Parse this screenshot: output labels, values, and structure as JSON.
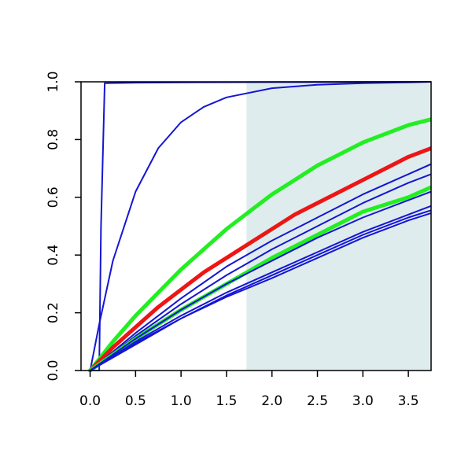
{
  "chart_data": {
    "type": "line",
    "title": "",
    "xlabel": "",
    "ylabel": "",
    "xlim": [
      -0.1,
      3.75
    ],
    "ylim": [
      0.0,
      1.0
    ],
    "x_ticks": [
      0.0,
      0.5,
      1.0,
      1.5,
      2.0,
      2.5,
      3.0,
      3.5
    ],
    "x_tick_labels": [
      "0.0",
      "0.5",
      "1.0",
      "1.5",
      "2.0",
      "2.5",
      "3.0",
      "3.5"
    ],
    "y_ticks": [
      0.0,
      0.2,
      0.4,
      0.6,
      0.8,
      1.0
    ],
    "y_tick_labels": [
      "0.0",
      "0.2",
      "0.4",
      "0.6",
      "0.8",
      "1.0"
    ],
    "grid": false,
    "legend": "none",
    "shaded_region": {
      "x_from": 1.72,
      "x_to": 3.75,
      "color": "#deeced"
    },
    "colors": {
      "blue": "#1515d4",
      "green": "#22ee22",
      "red": "#ee1515"
    },
    "series": [
      {
        "color": "blue",
        "style": "thin",
        "x": [
          0,
          0.1,
          0.12,
          0.16,
          0.5,
          1.0,
          2.0,
          3.75
        ],
        "y": [
          0,
          0.0,
          0.5,
          0.995,
          0.997,
          0.998,
          0.999,
          1.0
        ]
      },
      {
        "color": "blue",
        "style": "thin",
        "x": [
          0,
          0.1,
          0.25,
          0.5,
          0.75,
          1.0,
          1.25,
          1.5,
          2.0,
          2.5,
          3.0,
          3.5,
          3.75
        ],
        "y": [
          0,
          0.16,
          0.38,
          0.62,
          0.77,
          0.86,
          0.913,
          0.946,
          0.978,
          0.99,
          0.995,
          0.998,
          1.0
        ]
      },
      {
        "color": "green",
        "style": "thick",
        "x": [
          0,
          0.25,
          0.5,
          0.75,
          1.0,
          1.25,
          1.5,
          1.75,
          2.0,
          2.25,
          2.5,
          2.75,
          3.0,
          3.25,
          3.5,
          3.75
        ],
        "y": [
          0,
          0.1,
          0.19,
          0.27,
          0.35,
          0.42,
          0.49,
          0.55,
          0.61,
          0.66,
          0.71,
          0.75,
          0.79,
          0.82,
          0.85,
          0.87
        ]
      },
      {
        "color": "red",
        "style": "thick",
        "x": [
          0,
          0.25,
          0.5,
          0.75,
          1.0,
          1.25,
          1.5,
          1.75,
          2.0,
          2.25,
          2.5,
          2.75,
          3.0,
          3.25,
          3.5,
          3.75
        ],
        "y": [
          0,
          0.08,
          0.15,
          0.22,
          0.28,
          0.34,
          0.39,
          0.44,
          0.49,
          0.54,
          0.58,
          0.62,
          0.66,
          0.7,
          0.74,
          0.77
        ]
      },
      {
        "color": "blue",
        "style": "thin",
        "x": [
          0,
          0.5,
          1.0,
          1.5,
          2.0,
          2.5,
          3.0,
          3.5,
          3.75
        ],
        "y": [
          0,
          0.13,
          0.25,
          0.36,
          0.45,
          0.53,
          0.61,
          0.68,
          0.715
        ]
      },
      {
        "color": "blue",
        "style": "thin",
        "x": [
          0,
          0.5,
          1.0,
          1.5,
          2.0,
          2.5,
          3.0,
          3.5,
          3.75
        ],
        "y": [
          0,
          0.12,
          0.23,
          0.33,
          0.42,
          0.5,
          0.58,
          0.65,
          0.68
        ]
      },
      {
        "color": "green",
        "style": "thick",
        "x": [
          0,
          0.5,
          1.0,
          1.5,
          2.0,
          2.5,
          3.0,
          3.5,
          3.75
        ],
        "y": [
          0,
          0.11,
          0.21,
          0.3,
          0.39,
          0.47,
          0.55,
          0.6,
          0.635
        ]
      },
      {
        "color": "blue",
        "style": "thin",
        "x": [
          0,
          0.5,
          1.0,
          1.5,
          2.0,
          2.5,
          3.0,
          3.5,
          3.75
        ],
        "y": [
          0,
          0.11,
          0.21,
          0.3,
          0.38,
          0.46,
          0.53,
          0.59,
          0.62
        ]
      },
      {
        "color": "blue",
        "style": "thin",
        "x": [
          0,
          0.5,
          1.0,
          1.5,
          2.0,
          2.5,
          3.0,
          3.5,
          3.75
        ],
        "y": [
          0,
          0.1,
          0.19,
          0.27,
          0.34,
          0.41,
          0.48,
          0.54,
          0.57
        ]
      },
      {
        "color": "blue",
        "style": "thin",
        "x": [
          0,
          0.5,
          1.0,
          1.5,
          2.0,
          2.5,
          3.0,
          3.5,
          3.75
        ],
        "y": [
          0,
          0.095,
          0.18,
          0.26,
          0.33,
          0.4,
          0.47,
          0.53,
          0.555
        ]
      },
      {
        "color": "blue",
        "style": "thin",
        "x": [
          0,
          0.5,
          1.0,
          1.5,
          2.0,
          2.5,
          3.0,
          3.5,
          3.75
        ],
        "y": [
          0,
          0.09,
          0.18,
          0.255,
          0.32,
          0.39,
          0.46,
          0.52,
          0.545
        ]
      }
    ]
  }
}
